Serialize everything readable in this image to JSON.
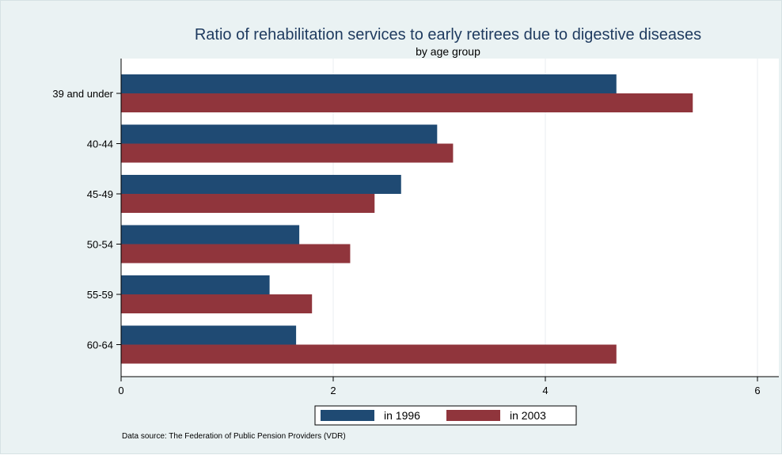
{
  "chart_data": {
    "type": "bar",
    "orientation": "horizontal",
    "title": "Ratio of rehabilitation services to early retirees due to digestive diseases",
    "subtitle": "by age group",
    "categories": [
      "39 and under",
      "40-44",
      "45-49",
      "50-54",
      "55-59",
      "60-64"
    ],
    "series": [
      {
        "name": "in 1996",
        "color": "#1f4a73",
        "values": [
          4.67,
          2.98,
          2.64,
          1.68,
          1.4,
          1.65
        ]
      },
      {
        "name": "in 2003",
        "color": "#90353c",
        "values": [
          5.39,
          3.13,
          2.39,
          2.16,
          1.8,
          4.67
        ]
      }
    ],
    "xticks": [
      "0",
      "2",
      "4",
      "6"
    ],
    "xlim": [
      0,
      6
    ],
    "grid": true,
    "legend_position": "bottom",
    "note": "Data source: The Federation of Public Pension Providers (VDR)",
    "colors": {
      "background": "#eaf2f3",
      "plot": "#ffffff",
      "grid": "#e8eef0",
      "title": "#1e3a5f"
    }
  }
}
